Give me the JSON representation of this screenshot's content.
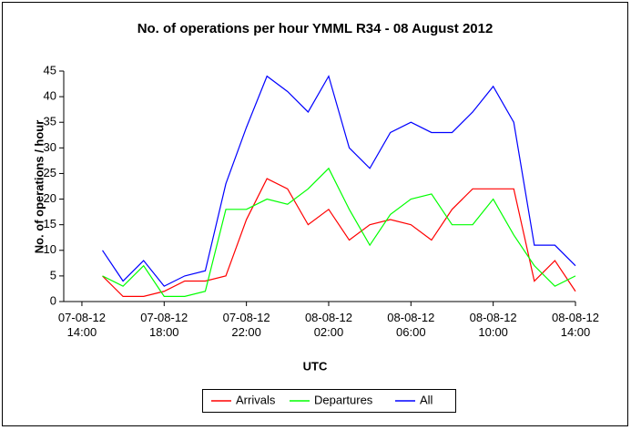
{
  "chart_data": {
    "type": "line",
    "title": "No. of operations per hour YMML R34 - 08 August 2012",
    "x_label": "UTC",
    "y_label": "No. of operations / hour",
    "x": [
      "2012-08-07T15:00",
      "2012-08-07T16:00",
      "2012-08-07T17:00",
      "2012-08-07T18:00",
      "2012-08-07T19:00",
      "2012-08-07T20:00",
      "2012-08-07T21:00",
      "2012-08-07T22:00",
      "2012-08-07T23:00",
      "2012-08-08T00:00",
      "2012-08-08T01:00",
      "2012-08-08T02:00",
      "2012-08-08T03:00",
      "2012-08-08T04:00",
      "2012-08-08T05:00",
      "2012-08-08T06:00",
      "2012-08-08T07:00",
      "2012-08-08T08:00",
      "2012-08-08T09:00",
      "2012-08-08T10:00",
      "2012-08-08T11:00",
      "2012-08-08T12:00",
      "2012-08-08T13:00",
      "2012-08-08T14:00"
    ],
    "series": [
      {
        "name": "Arrivals",
        "color": "#ff0000",
        "values": [
          5,
          1,
          1,
          2,
          4,
          4,
          5,
          16,
          24,
          22,
          15,
          18,
          12,
          15,
          16,
          15,
          12,
          18,
          22,
          22,
          22,
          4,
          8,
          2
        ]
      },
      {
        "name": "Departures",
        "color": "#00ff00",
        "values": [
          5,
          3,
          7,
          1,
          1,
          2,
          18,
          18,
          20,
          19,
          22,
          26,
          18,
          11,
          17,
          20,
          21,
          15,
          15,
          20,
          13,
          7,
          3,
          5
        ]
      },
      {
        "name": "All",
        "color": "#0000ff",
        "values": [
          10,
          4,
          8,
          3,
          5,
          6,
          23,
          34,
          44,
          41,
          37,
          44,
          30,
          26,
          33,
          35,
          33,
          33,
          37,
          42,
          35,
          11,
          11,
          7
        ]
      }
    ],
    "xlim": [
      "2012-08-07T13:07",
      "2012-08-08T14:00"
    ],
    "xticks": [
      {
        "value": "2012-08-07T14:00",
        "label": "07-08-12 14:00"
      },
      {
        "value": "2012-08-07T18:00",
        "label": "07-08-12 18:00"
      },
      {
        "value": "2012-08-07T22:00",
        "label": "07-08-12 22:00"
      },
      {
        "value": "2012-08-08T02:00",
        "label": "08-08-12 02:00"
      },
      {
        "value": "2012-08-08T06:00",
        "label": "08-08-12 06:00"
      },
      {
        "value": "2012-08-08T10:00",
        "label": "08-08-12 10:00"
      },
      {
        "value": "2012-08-08T14:00",
        "label": "08-08-12 14:00"
      }
    ],
    "ylim": [
      0,
      45
    ],
    "yticks": [
      0,
      5,
      10,
      15,
      20,
      25,
      30,
      35,
      40,
      45
    ],
    "grid": false,
    "legend": "bottom"
  }
}
